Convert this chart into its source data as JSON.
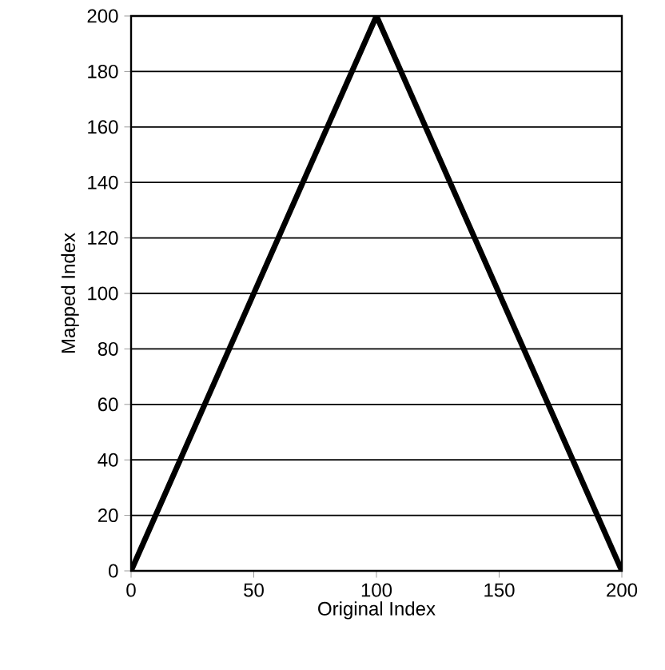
{
  "chart_data": {
    "type": "line",
    "xlabel": "Original Index",
    "ylabel": "Mapped Index",
    "x": [
      0,
      100,
      200
    ],
    "series": [
      {
        "color": "#000000",
        "values": [
          0,
          200,
          0
        ]
      }
    ],
    "xlim": [
      0,
      200
    ],
    "ylim": [
      0,
      200
    ],
    "xticks": [
      0,
      50,
      100,
      150,
      200
    ],
    "yticks": [
      0,
      20,
      40,
      60,
      80,
      100,
      120,
      140,
      160,
      180,
      200
    ],
    "grid": "y",
    "marker": "none",
    "line_style": "solid"
  }
}
